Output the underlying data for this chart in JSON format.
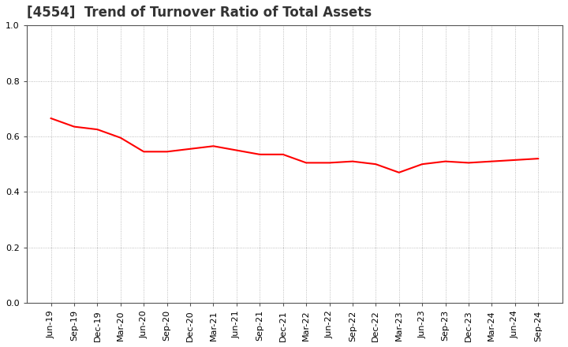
{
  "title": "[4554]  Trend of Turnover Ratio of Total Assets",
  "x_labels": [
    "Jun-19",
    "Sep-19",
    "Dec-19",
    "Mar-20",
    "Jun-20",
    "Sep-20",
    "Dec-20",
    "Mar-21",
    "Jun-21",
    "Sep-21",
    "Dec-21",
    "Mar-22",
    "Jun-22",
    "Sep-22",
    "Dec-22",
    "Mar-23",
    "Jun-23",
    "Sep-23",
    "Dec-23",
    "Mar-24",
    "Jun-24",
    "Sep-24"
  ],
  "values": [
    0.665,
    0.635,
    0.625,
    0.595,
    0.545,
    0.545,
    0.555,
    0.565,
    0.55,
    0.535,
    0.535,
    0.505,
    0.505,
    0.51,
    0.5,
    0.47,
    0.5,
    0.51,
    0.505,
    0.51,
    0.515,
    0.52
  ],
  "line_color": "#FF0000",
  "line_width": 1.5,
  "ylim": [
    0.0,
    1.0
  ],
  "yticks": [
    0.0,
    0.2,
    0.4,
    0.6,
    0.8,
    1.0
  ],
  "background_color": "#ffffff",
  "plot_bg_color": "#ffffff",
  "grid_color": "#aaaaaa",
  "title_fontsize": 12,
  "tick_fontsize": 8,
  "title_color": "#333333"
}
